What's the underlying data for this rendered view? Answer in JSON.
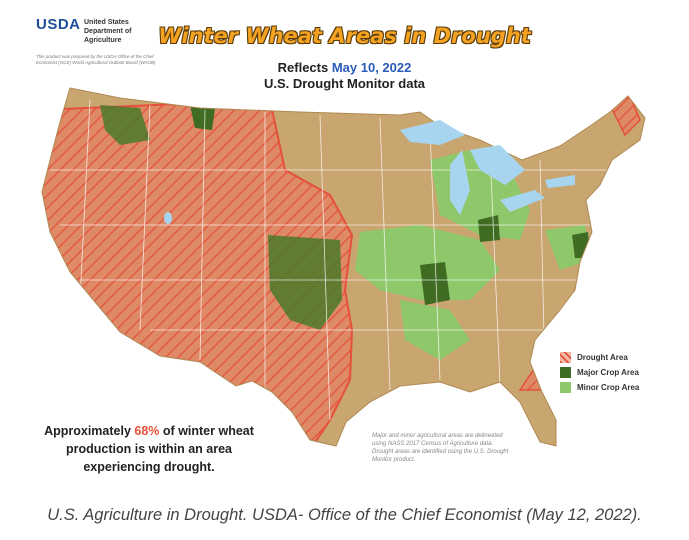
{
  "header": {
    "agency_abbr": "USDA",
    "agency_name": [
      "United States",
      "Department of",
      "Agriculture"
    ],
    "prepared_note": "This product was prepared by the USDA Office of the Chief Economist (OCE) World Agricultural Outlook Board (WAOB)"
  },
  "title": "Winter Wheat Areas in Drought",
  "subtitle": {
    "prefix": "Reflects",
    "date": "May 10, 2022",
    "source": "U.S. Drought Monitor data"
  },
  "legend": [
    {
      "label": "Drought Area"
    },
    {
      "label": "Major Crop Area"
    },
    {
      "label": "Minor Crop Area"
    }
  ],
  "callout": {
    "before": "Approximately",
    "percent": "68%",
    "after": "of winter wheat production is within an area experiencing drought."
  },
  "footnote": "Major and minor agricultural areas are delineated using NASS 2017 Census of Agriculture data. Drought areas are identified using the U.S. Drought Monitor product.",
  "caption": "U.S. Agriculture in Drought. USDA- Office of the Chief Economist (May 12, 2022)."
}
